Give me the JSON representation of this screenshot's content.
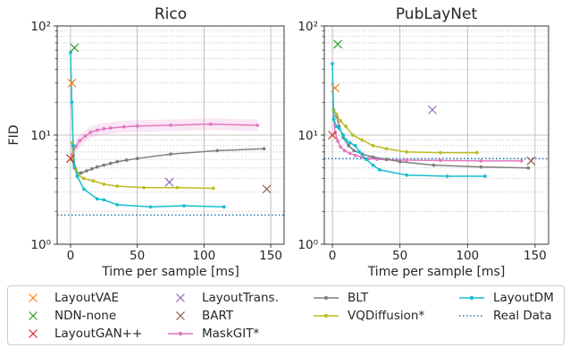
{
  "chart_data": [
    {
      "type": "line",
      "title": "Rico",
      "xlabel": "Time per sample [ms]",
      "ylabel": "FID",
      "xlim": [
        -10,
        160
      ],
      "ylim": [
        1,
        100
      ],
      "yscale": "log",
      "grid": true,
      "xticks": [
        0,
        50,
        100,
        150
      ],
      "yticks": [
        1,
        10,
        100
      ],
      "yticklabels": [
        "10⁰",
        "10¹",
        "10²"
      ],
      "series": [
        {
          "name": "LayoutVAE",
          "kind": "marker",
          "marker": "x",
          "color": "#ff7f0e",
          "points": [
            [
              1,
              30
            ]
          ]
        },
        {
          "name": "NDN-none",
          "kind": "marker",
          "marker": "x",
          "color": "#2ca02c",
          "points": [
            [
              3,
              63
            ]
          ]
        },
        {
          "name": "LayoutGAN++",
          "kind": "marker",
          "marker": "x",
          "color": "#d62728",
          "points": [
            [
              0,
              6.1
            ]
          ]
        },
        {
          "name": "LayoutTrans.",
          "kind": "marker",
          "marker": "x",
          "color": "#9467bd",
          "points": [
            [
              74,
              3.7
            ]
          ]
        },
        {
          "name": "BART",
          "kind": "marker",
          "marker": "x",
          "color": "#8c564b",
          "points": [
            [
              147,
              3.2
            ]
          ]
        },
        {
          "name": "MaskGIT*",
          "kind": "line",
          "color": "#e377c2",
          "band": true,
          "points": [
            [
              1,
              6.6
            ],
            [
              4,
              7.9
            ],
            [
              7,
              8.9
            ],
            [
              11,
              9.8
            ],
            [
              15,
              10.6
            ],
            [
              20,
              11.1
            ],
            [
              25,
              11.4
            ],
            [
              30,
              11.6
            ],
            [
              40,
              11.9
            ],
            [
              50,
              12.1
            ],
            [
              75,
              12.3
            ],
            [
              105,
              12.6
            ],
            [
              140,
              12.3
            ]
          ]
        },
        {
          "name": "BLT",
          "kind": "line",
          "color": "#7f7f7f",
          "points": [
            [
              1,
              6.0
            ],
            [
              3,
              5.0
            ],
            [
              5,
              4.5
            ],
            [
              8,
              4.5
            ],
            [
              12,
              4.7
            ],
            [
              16,
              4.9
            ],
            [
              20,
              5.1
            ],
            [
              25,
              5.3
            ],
            [
              30,
              5.5
            ],
            [
              35,
              5.7
            ],
            [
              42,
              5.9
            ],
            [
              50,
              6.1
            ],
            [
              75,
              6.7
            ],
            [
              110,
              7.2
            ],
            [
              145,
              7.5
            ]
          ]
        },
        {
          "name": "VQDiffusion*",
          "kind": "line",
          "color": "#bcbd22",
          "points": [
            [
              1,
              8.5
            ],
            [
              2,
              6.0
            ],
            [
              4,
              4.9
            ],
            [
              6,
              4.3
            ],
            [
              10,
              4.0
            ],
            [
              17,
              3.8
            ],
            [
              25,
              3.55
            ],
            [
              35,
              3.4
            ],
            [
              55,
              3.3
            ],
            [
              80,
              3.3
            ],
            [
              107,
              3.25
            ]
          ]
        },
        {
          "name": "LayoutDM",
          "kind": "line",
          "color": "#17becf",
          "points": [
            [
              0,
              57
            ],
            [
              1,
              20
            ],
            [
              2,
              8.0
            ],
            [
              3,
              5.2
            ],
            [
              5,
              4.2
            ],
            [
              10,
              3.2
            ],
            [
              20,
              2.6
            ],
            [
              25,
              2.55
            ],
            [
              35,
              2.3
            ],
            [
              60,
              2.2
            ],
            [
              85,
              2.25
            ],
            [
              115,
              2.2
            ]
          ]
        },
        {
          "name": "Real Data",
          "kind": "hline",
          "color": "#1f77b4",
          "y": 1.85
        }
      ]
    },
    {
      "type": "line",
      "title": "PubLayNet",
      "xlabel": "Time per sample [ms]",
      "ylabel": "",
      "xlim": [
        -6,
        160
      ],
      "ylim": [
        1,
        100
      ],
      "yscale": "log",
      "grid": true,
      "xticks": [
        0,
        50,
        100,
        150
      ],
      "yticks": [
        1,
        10,
        100
      ],
      "yticklabels": [
        "10⁰",
        "10¹",
        "10²"
      ],
      "series": [
        {
          "name": "LayoutVAE",
          "kind": "marker",
          "marker": "x",
          "color": "#ff7f0e",
          "points": [
            [
              2,
              27
            ]
          ]
        },
        {
          "name": "NDN-none",
          "kind": "marker",
          "marker": "x",
          "color": "#2ca02c",
          "points": [
            [
              4,
              68
            ]
          ]
        },
        {
          "name": "LayoutGAN++",
          "kind": "marker",
          "marker": "x",
          "color": "#d62728",
          "points": [
            [
              0,
              10
            ]
          ]
        },
        {
          "name": "LayoutTrans.",
          "kind": "marker",
          "marker": "x",
          "color": "#9467bd",
          "points": [
            [
              74,
              17
            ]
          ]
        },
        {
          "name": "BART",
          "kind": "marker",
          "marker": "x",
          "color": "#8c564b",
          "points": [
            [
              147,
              5.8
            ]
          ]
        },
        {
          "name": "MaskGIT*",
          "kind": "line",
          "color": "#e377c2",
          "band": false,
          "points": [
            [
              1,
              14
            ],
            [
              2,
              10.5
            ],
            [
              4,
              8.8
            ],
            [
              6,
              7.8
            ],
            [
              9,
              7.2
            ],
            [
              13,
              6.8
            ],
            [
              17,
              6.5
            ],
            [
              22,
              6.3
            ],
            [
              27,
              6.1
            ],
            [
              33,
              6.0
            ],
            [
              40,
              5.95
            ],
            [
              55,
              5.9
            ],
            [
              80,
              5.85
            ],
            [
              110,
              5.8
            ],
            [
              140,
              5.8
            ]
          ]
        },
        {
          "name": "BLT",
          "kind": "line",
          "color": "#7f7f7f",
          "points": [
            [
              1,
              17
            ],
            [
              3,
              15
            ],
            [
              5,
              12
            ],
            [
              8,
              9.5
            ],
            [
              12,
              8.0
            ],
            [
              16,
              7.2
            ],
            [
              22,
              6.7
            ],
            [
              30,
              6.3
            ],
            [
              40,
              6.0
            ],
            [
              50,
              5.7
            ],
            [
              75,
              5.3
            ],
            [
              110,
              5.1
            ],
            [
              145,
              5.0
            ]
          ]
        },
        {
          "name": "VQDiffusion*",
          "kind": "line",
          "color": "#bcbd22",
          "points": [
            [
              1,
              17
            ],
            [
              3,
              15.5
            ],
            [
              6,
              13.5
            ],
            [
              10,
              12
            ],
            [
              15,
              10
            ],
            [
              22,
              9.0
            ],
            [
              30,
              8.0
            ],
            [
              40,
              7.5
            ],
            [
              55,
              7.0
            ],
            [
              80,
              6.9
            ],
            [
              107,
              6.9
            ]
          ]
        },
        {
          "name": "LayoutDM",
          "kind": "line",
          "color": "#17becf",
          "points": [
            [
              0,
              45
            ],
            [
              1,
              14
            ],
            [
              3,
              12
            ],
            [
              5,
              11.5
            ],
            [
              8,
              10
            ],
            [
              10,
              9.0
            ],
            [
              13,
              8.5
            ],
            [
              17,
              8.0
            ],
            [
              20,
              7.0
            ],
            [
              25,
              6.0
            ],
            [
              30,
              5.3
            ],
            [
              35,
              4.8
            ],
            [
              55,
              4.3
            ],
            [
              85,
              4.2
            ],
            [
              113,
              4.2
            ]
          ]
        },
        {
          "name": "Real Data",
          "kind": "hline",
          "color": "#1f77b4",
          "y": 6.1
        }
      ]
    }
  ],
  "legend": {
    "placement": "bottom",
    "items": [
      {
        "label": "LayoutVAE",
        "color": "#ff7f0e",
        "style": "x"
      },
      {
        "label": "NDN-none",
        "color": "#2ca02c",
        "style": "x"
      },
      {
        "label": "LayoutGAN++",
        "color": "#d62728",
        "style": "x"
      },
      {
        "label": "LayoutTrans.",
        "color": "#9467bd",
        "style": "x"
      },
      {
        "label": "BART",
        "color": "#8c564b",
        "style": "x"
      },
      {
        "label": "MaskGIT*",
        "color": "#e377c2",
        "style": "line-dot"
      },
      {
        "label": "BLT",
        "color": "#7f7f7f",
        "style": "line-dot"
      },
      {
        "label": "VQDiffusion*",
        "color": "#bcbd22",
        "style": "line-dot"
      },
      {
        "label": "LayoutDM",
        "color": "#17becf",
        "style": "line-dot"
      },
      {
        "label": "Real Data",
        "color": "#1f77b4",
        "style": "dotted"
      }
    ]
  }
}
